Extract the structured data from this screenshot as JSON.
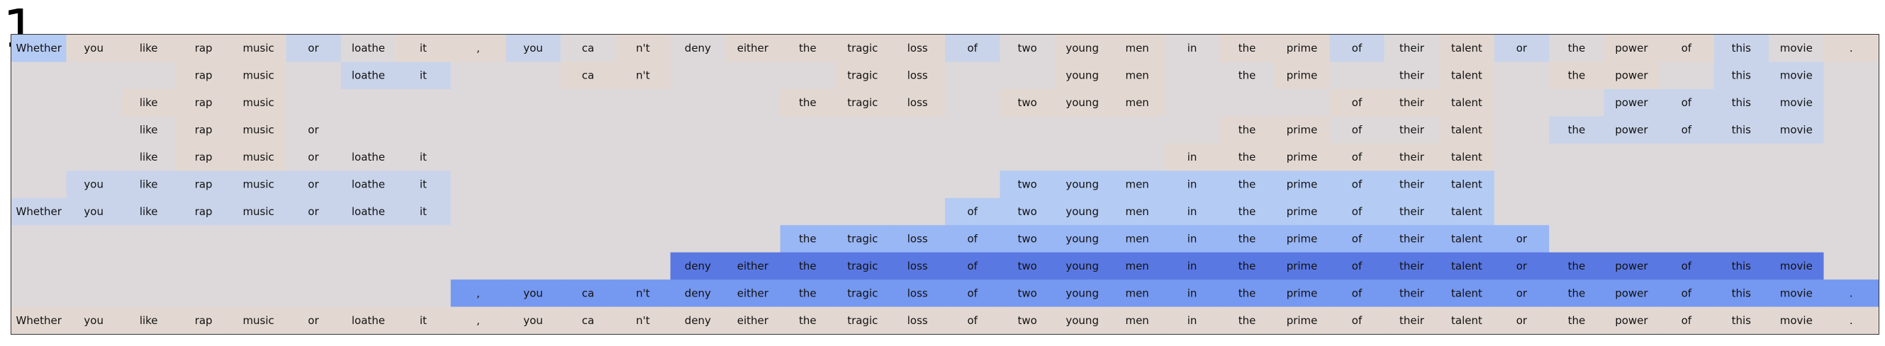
{
  "figure_label": "1",
  "colors": {
    "background": "#dcdadb",
    "scale": [
      "#e3d8d1",
      "#ddd9da",
      "#c9d4ea",
      "#b4cbf3",
      "#99b6f5",
      "#7598f0",
      "#5a78e2"
    ]
  },
  "tokens": [
    "Whether",
    "you",
    "like",
    "rap",
    "music",
    "or",
    "loathe",
    "it",
    ",",
    "you",
    "ca",
    "n't",
    "deny",
    "either",
    "the",
    "tragic",
    "loss",
    "of",
    "two",
    "young",
    "men",
    "in",
    "the",
    "prime",
    "of",
    "their",
    "talent",
    "or",
    "the",
    "power",
    "of",
    "this",
    "movie",
    "."
  ],
  "rows": [
    {
      "levels": [
        3,
        0,
        0,
        0,
        0,
        2,
        1,
        0,
        0,
        2,
        1,
        0,
        1,
        0,
        0,
        0,
        0,
        2,
        1,
        0,
        0,
        1,
        0,
        0,
        2,
        1,
        0,
        2,
        1,
        0,
        0,
        2,
        1,
        0
      ],
      "visible": [
        1,
        1,
        1,
        1,
        1,
        1,
        1,
        1,
        1,
        1,
        1,
        1,
        1,
        1,
        1,
        1,
        1,
        1,
        1,
        1,
        1,
        1,
        1,
        1,
        1,
        1,
        1,
        1,
        1,
        1,
        1,
        1,
        1,
        1
      ]
    },
    {
      "levels": [
        1,
        1,
        1,
        0,
        0,
        1,
        2,
        2,
        1,
        1,
        0,
        0,
        1,
        1,
        1,
        0,
        0,
        1,
        1,
        0,
        0,
        1,
        1,
        0,
        1,
        1,
        0,
        1,
        0,
        0,
        1,
        2,
        2,
        1
      ],
      "visible": [
        0,
        0,
        0,
        1,
        1,
        0,
        1,
        1,
        0,
        0,
        1,
        1,
        0,
        0,
        0,
        1,
        1,
        0,
        0,
        1,
        1,
        0,
        1,
        1,
        0,
        1,
        1,
        0,
        1,
        1,
        0,
        1,
        1,
        0
      ]
    },
    {
      "levels": [
        1,
        1,
        0,
        0,
        0,
        1,
        1,
        1,
        1,
        1,
        1,
        1,
        1,
        1,
        0,
        0,
        0,
        1,
        0,
        0,
        0,
        1,
        1,
        1,
        0,
        0,
        0,
        1,
        1,
        2,
        2,
        2,
        2,
        1
      ],
      "visible": [
        0,
        0,
        1,
        1,
        1,
        0,
        0,
        0,
        0,
        0,
        0,
        0,
        0,
        0,
        1,
        1,
        1,
        0,
        1,
        1,
        1,
        0,
        0,
        0,
        1,
        1,
        1,
        0,
        0,
        1,
        1,
        1,
        1,
        0
      ]
    },
    {
      "levels": [
        1,
        1,
        1,
        0,
        0,
        1,
        1,
        1,
        1,
        1,
        1,
        1,
        1,
        1,
        1,
        1,
        1,
        1,
        1,
        1,
        1,
        1,
        0,
        0,
        1,
        1,
        0,
        1,
        2,
        2,
        2,
        2,
        2,
        1
      ],
      "visible": [
        0,
        0,
        1,
        1,
        1,
        1,
        0,
        0,
        0,
        0,
        0,
        0,
        0,
        0,
        0,
        0,
        0,
        0,
        0,
        0,
        0,
        0,
        1,
        1,
        1,
        1,
        1,
        0,
        1,
        1,
        1,
        1,
        1,
        0
      ]
    },
    {
      "levels": [
        1,
        1,
        1,
        0,
        0,
        1,
        1,
        1,
        1,
        1,
        1,
        1,
        1,
        1,
        1,
        1,
        1,
        1,
        1,
        1,
        1,
        0,
        0,
        0,
        0,
        0,
        0,
        1,
        1,
        1,
        1,
        1,
        1,
        1
      ],
      "visible": [
        0,
        0,
        1,
        1,
        1,
        1,
        1,
        1,
        0,
        0,
        0,
        0,
        0,
        0,
        0,
        0,
        0,
        0,
        0,
        0,
        0,
        1,
        1,
        1,
        1,
        1,
        1,
        0,
        0,
        0,
        0,
        0,
        0,
        0
      ]
    },
    {
      "levels": [
        1,
        2,
        2,
        2,
        2,
        2,
        2,
        2,
        1,
        1,
        1,
        1,
        1,
        1,
        1,
        1,
        1,
        1,
        3,
        3,
        3,
        3,
        3,
        3,
        3,
        3,
        3,
        1,
        1,
        1,
        1,
        1,
        1,
        1
      ],
      "visible": [
        0,
        1,
        1,
        1,
        1,
        1,
        1,
        1,
        0,
        0,
        0,
        0,
        0,
        0,
        0,
        0,
        0,
        0,
        1,
        1,
        1,
        1,
        1,
        1,
        1,
        1,
        1,
        0,
        0,
        0,
        0,
        0,
        0,
        0
      ]
    },
    {
      "levels": [
        2,
        2,
        2,
        2,
        2,
        2,
        2,
        2,
        1,
        1,
        1,
        1,
        1,
        1,
        1,
        1,
        1,
        3,
        3,
        3,
        3,
        3,
        3,
        3,
        3,
        3,
        3,
        1,
        1,
        1,
        1,
        1,
        1,
        1
      ],
      "visible": [
        1,
        1,
        1,
        1,
        1,
        1,
        1,
        1,
        0,
        0,
        0,
        0,
        0,
        0,
        0,
        0,
        0,
        1,
        1,
        1,
        1,
        1,
        1,
        1,
        1,
        1,
        1,
        0,
        0,
        0,
        0,
        0,
        0,
        0
      ]
    },
    {
      "levels": [
        1,
        1,
        1,
        1,
        1,
        1,
        1,
        1,
        1,
        1,
        1,
        1,
        1,
        1,
        4,
        4,
        4,
        4,
        4,
        4,
        4,
        4,
        4,
        4,
        4,
        4,
        4,
        4,
        1,
        1,
        1,
        1,
        1,
        1
      ],
      "visible": [
        0,
        0,
        0,
        0,
        0,
        0,
        0,
        0,
        0,
        0,
        0,
        0,
        0,
        0,
        1,
        1,
        1,
        1,
        1,
        1,
        1,
        1,
        1,
        1,
        1,
        1,
        1,
        1,
        0,
        0,
        0,
        0,
        0,
        0
      ]
    },
    {
      "levels": [
        1,
        1,
        1,
        1,
        1,
        1,
        1,
        1,
        1,
        1,
        1,
        1,
        6,
        6,
        6,
        6,
        6,
        6,
        6,
        6,
        6,
        6,
        6,
        6,
        6,
        6,
        6,
        6,
        6,
        6,
        6,
        6,
        6,
        1
      ],
      "visible": [
        0,
        0,
        0,
        0,
        0,
        0,
        0,
        0,
        0,
        0,
        0,
        0,
        1,
        1,
        1,
        1,
        1,
        1,
        1,
        1,
        1,
        1,
        1,
        1,
        1,
        1,
        1,
        1,
        1,
        1,
        1,
        1,
        1,
        0
      ]
    },
    {
      "levels": [
        1,
        1,
        1,
        1,
        1,
        1,
        1,
        1,
        5,
        5,
        5,
        5,
        5,
        5,
        5,
        5,
        5,
        5,
        5,
        5,
        5,
        5,
        5,
        5,
        5,
        5,
        5,
        5,
        5,
        5,
        5,
        5,
        5,
        5
      ],
      "visible": [
        0,
        0,
        0,
        0,
        0,
        0,
        0,
        0,
        1,
        1,
        1,
        1,
        1,
        1,
        1,
        1,
        1,
        1,
        1,
        1,
        1,
        1,
        1,
        1,
        1,
        1,
        1,
        1,
        1,
        1,
        1,
        1,
        1,
        1
      ]
    },
    {
      "levels": [
        0,
        0,
        0,
        0,
        0,
        0,
        0,
        0,
        0,
        0,
        0,
        0,
        0,
        0,
        0,
        0,
        0,
        0,
        0,
        0,
        0,
        0,
        0,
        0,
        0,
        0,
        0,
        0,
        0,
        0,
        0,
        0,
        0,
        0
      ],
      "visible": [
        1,
        1,
        1,
        1,
        1,
        1,
        1,
        1,
        1,
        1,
        1,
        1,
        1,
        1,
        1,
        1,
        1,
        1,
        1,
        1,
        1,
        1,
        1,
        1,
        1,
        1,
        1,
        1,
        1,
        1,
        1,
        1,
        1,
        1
      ]
    }
  ]
}
